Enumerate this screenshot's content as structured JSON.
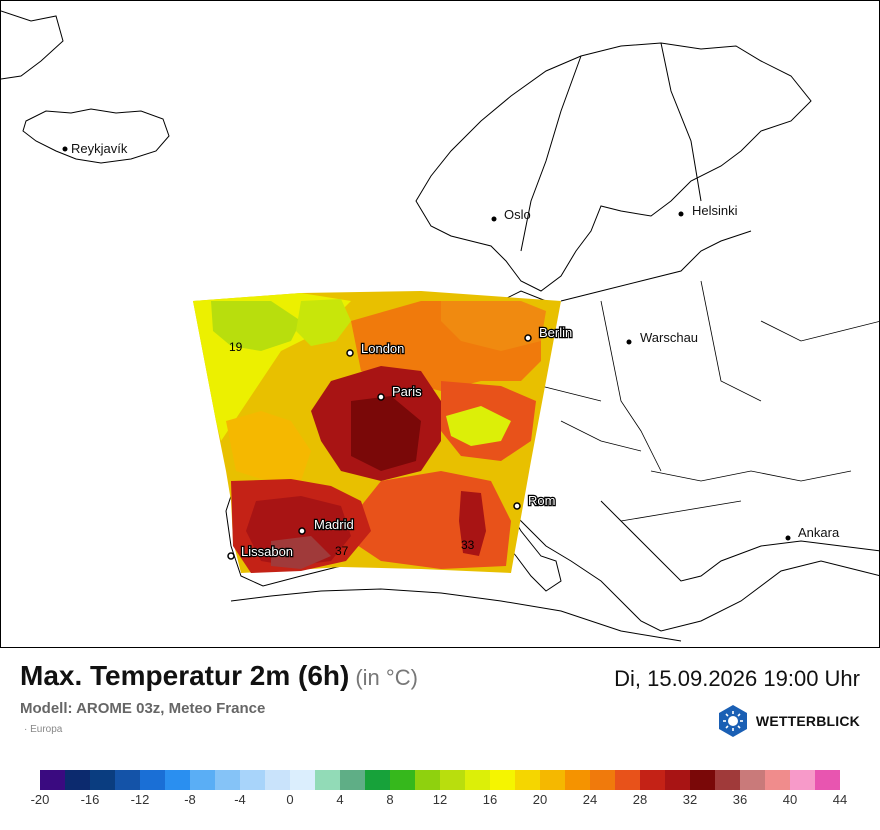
{
  "map": {
    "cities": [
      {
        "name": "Reykjavík",
        "dark": false
      },
      {
        "name": "Oslo",
        "dark": false
      },
      {
        "name": "Helsinki",
        "dark": false
      },
      {
        "name": "London",
        "dark": true
      },
      {
        "name": "Berlin",
        "dark": true
      },
      {
        "name": "Warschau",
        "dark": false
      },
      {
        "name": "Paris",
        "dark": true
      },
      {
        "name": "Madrid",
        "dark": true
      },
      {
        "name": "Lissabon",
        "dark": true
      },
      {
        "name": "Rom",
        "dark": true
      },
      {
        "name": "Ankara",
        "dark": false
      }
    ],
    "values": [
      "19",
      "37",
      "33"
    ]
  },
  "header": {
    "title": "Max. Temperatur 2m (6h)",
    "unit": "(in °C)",
    "model": "Modell: AROME 03z, Meteo France",
    "region": "Europa",
    "datetime": "Di, 15.09.2026 19:00 Uhr",
    "brand": "WETTERBLICK"
  },
  "legend": {
    "colors": [
      "#3a0a80",
      "#0c2a6e",
      "#0a3d80",
      "#1453a8",
      "#1a6fd6",
      "#2a8ff0",
      "#5aaef5",
      "#85c3f7",
      "#a8d4fa",
      "#c9e3fb",
      "#dbeefd",
      "#92dbb7",
      "#5fae86",
      "#17a23a",
      "#36b81c",
      "#8fd10e",
      "#b9de0d",
      "#dcef08",
      "#f5f500",
      "#f5d600",
      "#f5b800",
      "#f59300",
      "#f07a0c",
      "#e8521a",
      "#c42216",
      "#a81414",
      "#7a0808",
      "#a03a3a",
      "#c97a7a",
      "#f08c8c",
      "#f79ac9",
      "#e855b0"
    ],
    "labels": [
      "-20",
      "-16",
      "-12",
      "-8",
      "-4",
      "0",
      "4",
      "8",
      "12",
      "16",
      "20",
      "24",
      "28",
      "32",
      "36",
      "40",
      "44"
    ]
  }
}
